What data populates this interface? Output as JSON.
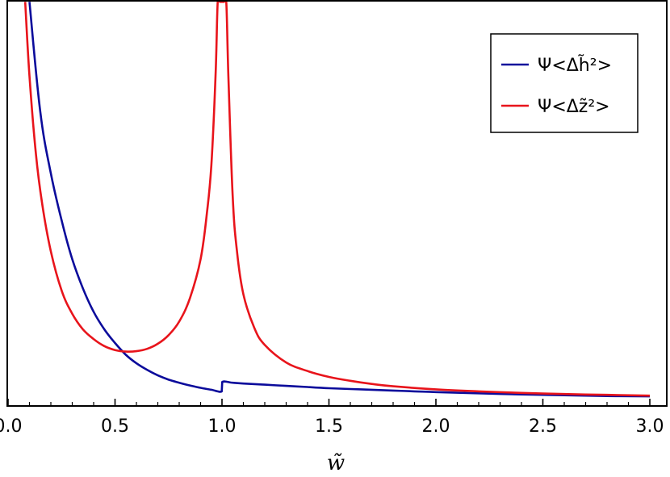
{
  "chart_data": {
    "type": "line",
    "title": "",
    "xlabel": "w̃",
    "ylabel": "",
    "xlim": [
      0.0,
      3.0
    ],
    "ylim": [
      0.0,
      1.0
    ],
    "x_ticks": [
      "0.0",
      "0.5",
      "1.0",
      "1.5",
      "2.0",
      "2.5",
      "3.0"
    ],
    "grid": false,
    "legend": "top-right",
    "series": [
      {
        "name": "Ψ<Δh̃²>",
        "color": "#0b0b9b",
        "x": [
          0.1,
          0.15,
          0.2,
          0.25,
          0.3,
          0.35,
          0.4,
          0.45,
          0.5,
          0.55,
          0.6,
          0.65,
          0.7,
          0.75,
          0.8,
          0.85,
          0.9,
          0.95,
          0.999,
          1.001,
          1.05,
          1.1,
          1.2,
          1.3,
          1.4,
          1.5,
          1.6,
          1.7,
          1.8,
          1.9,
          2.0,
          2.2,
          2.4,
          2.6,
          2.8,
          3.0
        ],
        "y": [
          1.02,
          0.74,
          0.58,
          0.46,
          0.36,
          0.285,
          0.225,
          0.18,
          0.145,
          0.115,
          0.093,
          0.076,
          0.062,
          0.051,
          0.043,
          0.036,
          0.03,
          0.025,
          0.021,
          0.045,
          0.043,
          0.041,
          0.038,
          0.035,
          0.032,
          0.029,
          0.027,
          0.025,
          0.023,
          0.021,
          0.019,
          0.016,
          0.013,
          0.011,
          0.009,
          0.008
        ]
      },
      {
        "name": "Ψ<Δz̃²>",
        "color": "#e8141b",
        "x": [
          0.08,
          0.1,
          0.13,
          0.16,
          0.2,
          0.25,
          0.3,
          0.35,
          0.4,
          0.45,
          0.5,
          0.55,
          0.6,
          0.65,
          0.7,
          0.75,
          0.8,
          0.85,
          0.9,
          0.93,
          0.95,
          0.97,
          0.98,
          0.99,
          1.0,
          1.01,
          1.02,
          1.03,
          1.05,
          1.07,
          1.1,
          1.15,
          1.2,
          1.3,
          1.4,
          1.5,
          1.6,
          1.7,
          1.8,
          2.0,
          2.2,
          2.4,
          2.6,
          2.8,
          3.0
        ],
        "y": [
          1.02,
          0.83,
          0.63,
          0.5,
          0.38,
          0.28,
          0.22,
          0.18,
          0.155,
          0.137,
          0.127,
          0.123,
          0.124,
          0.13,
          0.143,
          0.165,
          0.2,
          0.26,
          0.36,
          0.48,
          0.6,
          0.83,
          1.02,
          1.02,
          1.02,
          1.02,
          1.02,
          0.83,
          0.52,
          0.38,
          0.27,
          0.185,
          0.14,
          0.095,
          0.073,
          0.058,
          0.048,
          0.04,
          0.034,
          0.026,
          0.021,
          0.017,
          0.014,
          0.012,
          0.01
        ]
      }
    ]
  }
}
